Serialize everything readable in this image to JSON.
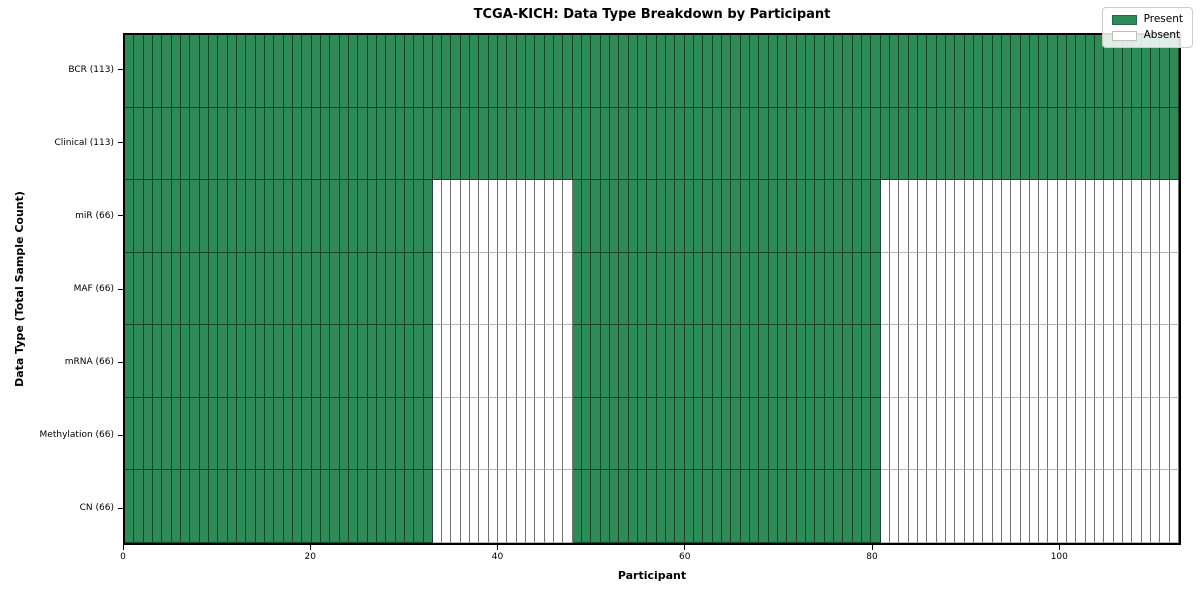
{
  "chart_data": {
    "type": "heatmap",
    "title": "TCGA-KICH: Data Type Breakdown by Participant",
    "xlabel": "Participant",
    "ylabel": "Data Type (Total Sample Count)",
    "n_participants": 113,
    "x_ticks": [
      0,
      20,
      40,
      60,
      80,
      100
    ],
    "xlim": [
      0,
      113
    ],
    "grid": false,
    "legend_position": "upper right",
    "colors": {
      "present": "#2e8b57",
      "absent": "#ffffff"
    },
    "legend": [
      {
        "label": "Present",
        "color": "#2e8b57"
      },
      {
        "label": "Absent",
        "color": "#ffffff"
      }
    ],
    "rows": [
      {
        "label": "BCR (113)",
        "count": 113,
        "present_ranges": [
          [
            0,
            113
          ]
        ]
      },
      {
        "label": "Clinical (113)",
        "count": 113,
        "present_ranges": [
          [
            0,
            113
          ]
        ]
      },
      {
        "label": "miR (66)",
        "count": 66,
        "present_ranges": [
          [
            0,
            33
          ],
          [
            48,
            81
          ]
        ]
      },
      {
        "label": "MAF (66)",
        "count": 66,
        "present_ranges": [
          [
            0,
            33
          ],
          [
            48,
            81
          ]
        ]
      },
      {
        "label": "mRNA (66)",
        "count": 66,
        "present_ranges": [
          [
            0,
            33
          ],
          [
            48,
            81
          ]
        ]
      },
      {
        "label": "Methylation (66)",
        "count": 66,
        "present_ranges": [
          [
            0,
            33
          ],
          [
            48,
            81
          ]
        ]
      },
      {
        "label": "CN (66)",
        "count": 66,
        "present_ranges": [
          [
            0,
            33
          ],
          [
            48,
            81
          ]
        ]
      }
    ]
  }
}
